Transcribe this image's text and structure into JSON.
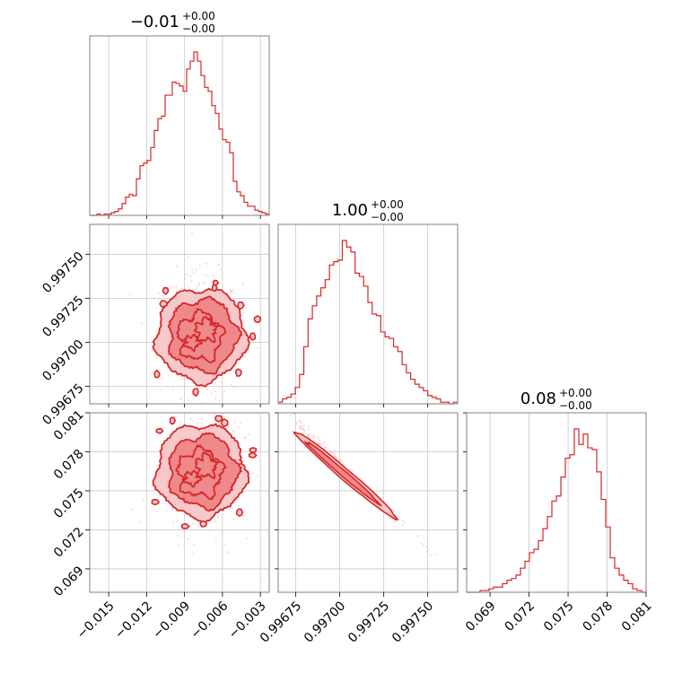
{
  "colors": {
    "accent": "#d62728",
    "fill_mid": "#ee8a8b",
    "fill_light": "#f7c9ca",
    "scatter": "#f0b0b8",
    "grid": "#c8c8c8",
    "frame": "#808080"
  },
  "chart_data": {
    "type": "corner",
    "grid": true,
    "titles": [
      {
        "value": "−0.01",
        "plus": "+0.00",
        "minus": "−0.00"
      },
      {
        "value": "1.00",
        "plus": "+0.00",
        "minus": "−0.00"
      },
      {
        "value": "0.08",
        "plus": "+0.00",
        "minus": "−0.00"
      }
    ],
    "parameters": [
      {
        "range": [
          -0.0165,
          -0.0023
        ],
        "ticks": [
          -0.015,
          -0.012,
          -0.009,
          -0.006,
          -0.003
        ],
        "tick_labels": [
          "−0.015",
          "−0.012",
          "−0.009",
          "−0.006",
          "−0.003"
        ],
        "mean": -0.0077,
        "sd": 0.0012
      },
      {
        "range": [
          0.99665,
          0.99767
        ],
        "ticks": [
          0.99675,
          0.997,
          0.99725,
          0.9975
        ],
        "tick_labels": [
          "0.99675",
          "0.99700",
          "0.99725",
          "0.99750"
        ],
        "mean": 0.99704,
        "sd": 0.00013
      },
      {
        "range": [
          0.0672,
          0.081
        ],
        "ticks": [
          0.069,
          0.072,
          0.075,
          0.078,
          0.081
        ],
        "tick_labels": [
          "0.069",
          "0.072",
          "0.075",
          "0.078",
          "0.081"
        ],
        "mean": 0.0765,
        "sd": 0.0017
      }
    ],
    "histograms": [
      {
        "param": 0,
        "bin_range": [
          -0.0165,
          -0.0023
        ],
        "counts": [
          0,
          0,
          1,
          0,
          1,
          1,
          2,
          3,
          5,
          9,
          14,
          16,
          15,
          28,
          38,
          40,
          42,
          52,
          65,
          74,
          76,
          92,
          92,
          102,
          101,
          99,
          95,
          112,
          118,
          125,
          118,
          107,
          98,
          95,
          84,
          78,
          66,
          58,
          56,
          48,
          26,
          18,
          15,
          10,
          7,
          7,
          4,
          3,
          2,
          1
        ]
      },
      {
        "param": 1,
        "bin_range": [
          0.99665,
          0.99767
        ],
        "counts": [
          1,
          3,
          4,
          6,
          10,
          18,
          35,
          52,
          60,
          66,
          71,
          76,
          85,
          87,
          88,
          100,
          96,
          93,
          80,
          78,
          72,
          62,
          55,
          54,
          44,
          41,
          40,
          35,
          32,
          24,
          19,
          15,
          12,
          10,
          8,
          5,
          4,
          3,
          1,
          1,
          0,
          1
        ]
      },
      {
        "param": 2,
        "bin_range": [
          0.0672,
          0.081
        ],
        "counts": [
          0,
          0,
          0,
          1,
          1,
          2,
          3,
          3,
          5,
          7,
          8,
          10,
          14,
          18,
          23,
          25,
          30,
          37,
          44,
          53,
          56,
          67,
          78,
          80,
          95,
          86,
          92,
          84,
          83,
          70,
          54,
          38,
          20,
          14,
          10,
          7,
          5,
          2,
          1,
          0
        ]
      }
    ],
    "contour_pairs": [
      {
        "x_param": 0,
        "y_param": 1,
        "correlation": -0.05
      },
      {
        "x_param": 0,
        "y_param": 2,
        "correlation": 0.05
      },
      {
        "x_param": 1,
        "y_param": 2,
        "correlation": -0.995
      }
    ]
  }
}
